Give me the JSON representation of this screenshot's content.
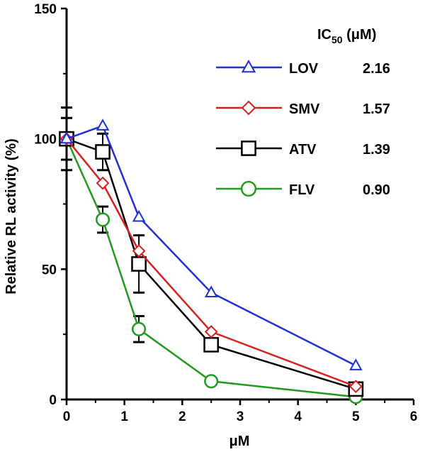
{
  "chart_data": {
    "type": "line",
    "title": "",
    "xlabel": "μM",
    "ylabel": "Relative RL activity (%)",
    "xlim": [
      0,
      6
    ],
    "ylim": [
      0,
      150
    ],
    "x_ticks": [
      "0",
      "1",
      "2",
      "3",
      "4",
      "5",
      "6"
    ],
    "y_ticks": [
      "0",
      "50",
      "100",
      "150"
    ],
    "grid": false,
    "legend_position": "top-right",
    "legend_header": {
      "prefix": "IC",
      "sub": "50",
      "suffix": " (μM)"
    },
    "series": [
      {
        "name": "LOV",
        "ic50": "2.16",
        "color": "#1f2fd6",
        "marker": "triangle",
        "x": [
          0,
          0.625,
          1.25,
          2.5,
          5
        ],
        "y": [
          100,
          105,
          70,
          41,
          13
        ],
        "err": [
          0,
          0,
          0,
          0,
          0
        ]
      },
      {
        "name": "SMV",
        "ic50": "1.57",
        "color": "#d62020",
        "marker": "diamond",
        "x": [
          0,
          0.625,
          1.25,
          2.5,
          5
        ],
        "y": [
          100,
          83,
          57,
          26,
          5
        ],
        "err": [
          0,
          0,
          0,
          0,
          0
        ]
      },
      {
        "name": "ATV",
        "ic50": "1.39",
        "color": "#000000",
        "marker": "square",
        "x": [
          0,
          0.625,
          1.25,
          2.5,
          5
        ],
        "y": [
          100,
          95,
          52,
          21,
          4
        ],
        "err": [
          8,
          7,
          11,
          0,
          0
        ]
      },
      {
        "name": "FLV",
        "ic50": "0.90",
        "color": "#1e9a1e",
        "marker": "circle",
        "x": [
          0,
          0.625,
          1.25,
          2.5,
          5
        ],
        "y": [
          100,
          69,
          27,
          7,
          1
        ],
        "err": [
          12,
          5,
          5,
          0,
          0
        ]
      }
    ]
  }
}
